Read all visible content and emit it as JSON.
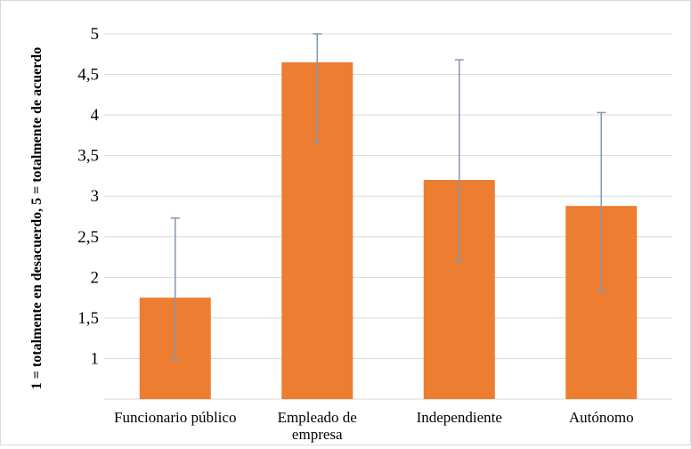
{
  "chart_data": {
    "type": "bar",
    "title": "",
    "xlabel": "",
    "ylabel": "1 = totalmente en desacuerdo, 5 = totalmente de acuerdo",
    "ylim": [
      1,
      5
    ],
    "yticks": [
      "1",
      "1,5",
      "2",
      "2,5",
      "3",
      "3,5",
      "4",
      "4,5",
      "5"
    ],
    "categories": [
      [
        "Funcionario público"
      ],
      [
        "Empleado de",
        "empresa"
      ],
      [
        "Independiente"
      ],
      [
        "Autónomo"
      ]
    ],
    "values": [
      1.75,
      4.65,
      3.2,
      2.88
    ],
    "error_bars": [
      {
        "low": 1.0,
        "high": 2.73
      },
      {
        "low": 3.65,
        "high": 5.0
      },
      {
        "low": 2.2,
        "high": 4.68
      },
      {
        "low": 1.83,
        "high": 4.03
      }
    ],
    "grid": true,
    "legend": "none",
    "colors": {
      "bar": "#ed7d31",
      "error_bar": "#8497b0",
      "grid": "#d9d9d9"
    }
  }
}
